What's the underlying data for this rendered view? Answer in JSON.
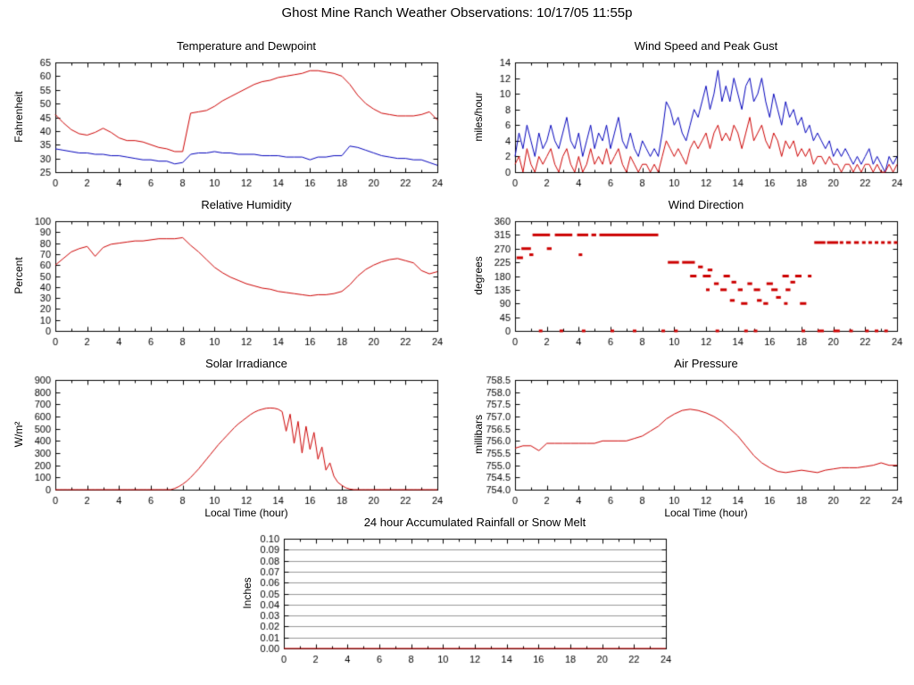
{
  "page_title": "Ghost Mine Ranch Weather Observations: 10/17/05 11:55p",
  "chart_data": [
    {
      "type": "line",
      "title": "Temperature and Dewpoint",
      "ylabel": "Fahrenheit",
      "xlabel": "",
      "xlim": [
        0,
        24
      ],
      "xtick": 2,
      "xminor": 1,
      "ylim": [
        25,
        65
      ],
      "ytick": 5,
      "ydec": 0,
      "series": [
        {
          "name": "dewpoint",
          "color": "#0000bb",
          "x0": 0,
          "dx": 0.5,
          "values": [
            33.5,
            33,
            32.5,
            32,
            32,
            31.5,
            31.5,
            31,
            31,
            30.5,
            30,
            29.5,
            29.5,
            29,
            29,
            28,
            28.5,
            31.5,
            32,
            32,
            32.5,
            32,
            32,
            31.5,
            31.5,
            31.5,
            31,
            31,
            31,
            30.5,
            30.5,
            30.5,
            29.5,
            30.5,
            30.5,
            31,
            31,
            34.5,
            34,
            33,
            32,
            31,
            30.5,
            30,
            30,
            29.5,
            29.5,
            28.5,
            27.5
          ]
        },
        {
          "name": "temperature",
          "color": "#cc0000",
          "x0": 0,
          "dx": 0.5,
          "values": [
            46,
            43,
            40.5,
            39,
            38.5,
            39.5,
            41,
            39.5,
            37.5,
            36.5,
            36.5,
            36,
            35,
            34,
            33.5,
            32.5,
            32.5,
            46.5,
            47,
            47.5,
            49,
            51,
            52.5,
            54,
            55.5,
            57,
            58,
            58.5,
            59.5,
            60,
            60.5,
            61,
            62,
            62,
            61.5,
            61,
            60,
            57,
            53,
            50,
            48,
            46.5,
            46,
            45.5,
            45.5,
            45.5,
            46,
            47,
            44
          ]
        }
      ]
    },
    {
      "type": "line",
      "title": "Wind Speed and Peak Gust",
      "ylabel": "miles/hour",
      "xlabel": "",
      "xlim": [
        0,
        24
      ],
      "xtick": 2,
      "xminor": 1,
      "ylim": [
        0,
        14
      ],
      "ytick": 2,
      "ydec": 0,
      "series": [
        {
          "name": "peak-gust",
          "color": "#0000bb",
          "x0": 0,
          "dx": 0.25,
          "values": [
            2,
            5,
            3,
            6,
            4,
            2,
            5,
            3,
            4,
            6,
            4,
            3,
            5,
            7,
            4,
            3,
            5,
            2,
            4,
            6,
            3,
            5,
            4,
            6,
            3,
            5,
            7,
            4,
            3,
            5,
            3,
            2,
            4,
            3,
            2,
            3,
            2,
            5,
            9,
            8,
            6,
            7,
            5,
            4,
            6,
            8,
            7,
            9,
            11,
            8,
            10,
            13,
            9,
            11,
            9,
            12,
            10,
            8,
            11,
            12,
            9,
            10,
            12,
            9,
            7,
            10,
            8,
            6,
            9,
            7,
            8,
            6,
            7,
            5,
            6,
            4,
            5,
            4,
            3,
            4,
            2,
            3,
            2,
            3,
            2,
            1,
            2,
            1,
            2,
            3,
            1,
            2,
            1,
            0,
            2,
            1,
            2
          ]
        },
        {
          "name": "wind-speed",
          "color": "#cc0000",
          "x0": 0,
          "dx": 0.25,
          "values": [
            1,
            2,
            0,
            3,
            1,
            0,
            2,
            1,
            2,
            3,
            1,
            0,
            2,
            3,
            1,
            0,
            2,
            0,
            1,
            3,
            1,
            2,
            1,
            3,
            1,
            2,
            3,
            1,
            0,
            2,
            1,
            0,
            1,
            1,
            0,
            1,
            0,
            2,
            4,
            3,
            2,
            3,
            2,
            1,
            3,
            4,
            3,
            4,
            5,
            3,
            5,
            6,
            4,
            5,
            4,
            6,
            5,
            3,
            5,
            7,
            4,
            5,
            6,
            4,
            3,
            5,
            4,
            2,
            4,
            3,
            4,
            2,
            3,
            2,
            3,
            1,
            2,
            2,
            1,
            2,
            1,
            1,
            0,
            1,
            1,
            0,
            1,
            0,
            1,
            1,
            0,
            1,
            0,
            0,
            1,
            0,
            1
          ]
        }
      ]
    },
    {
      "type": "line",
      "title": "Relative Humidity",
      "ylabel": "Percent",
      "xlabel": "",
      "xlim": [
        0,
        24
      ],
      "xtick": 2,
      "xminor": 1,
      "ylim": [
        0,
        100
      ],
      "ytick": 10,
      "ydec": 0,
      "series": [
        {
          "name": "relative-humidity",
          "color": "#cc0000",
          "x0": 0,
          "dx": 0.5,
          "values": [
            60,
            66,
            72,
            75,
            77,
            68,
            76,
            79,
            80,
            81,
            82,
            82,
            83,
            84,
            84,
            84,
            85,
            78,
            72,
            65,
            58,
            53,
            49,
            46,
            43,
            41,
            39,
            38,
            36,
            35,
            34,
            33,
            32,
            33,
            33,
            34,
            36,
            42,
            50,
            56,
            60,
            63,
            65,
            66,
            64,
            62,
            55,
            52,
            54
          ]
        }
      ]
    },
    {
      "type": "scatter",
      "title": "Wind Direction",
      "ylabel": "degrees",
      "xlabel": "",
      "xlim": [
        0,
        24
      ],
      "xtick": 2,
      "xminor": 1,
      "ylim": [
        0,
        360
      ],
      "ytick": 45,
      "ydec": 0,
      "segment_color": "#cc0000",
      "segments": [
        [
          0.1,
          0.5,
          240
        ],
        [
          0.4,
          1.0,
          270
        ],
        [
          0.9,
          1.15,
          250
        ],
        [
          1.1,
          2.2,
          315
        ],
        [
          2.0,
          2.3,
          270
        ],
        [
          2.5,
          3.6,
          315
        ],
        [
          3.9,
          4.6,
          315
        ],
        [
          4.0,
          4.2,
          250
        ],
        [
          4.8,
          5.1,
          315
        ],
        [
          5.3,
          9.0,
          315
        ],
        [
          9.6,
          10.3,
          225
        ],
        [
          10.5,
          11.3,
          225
        ],
        [
          11.0,
          11.4,
          180
        ],
        [
          11.5,
          11.8,
          210
        ],
        [
          11.8,
          12.3,
          180
        ],
        [
          12.1,
          12.4,
          200
        ],
        [
          12.0,
          12.2,
          135
        ],
        [
          12.5,
          12.8,
          155
        ],
        [
          12.9,
          13.3,
          135
        ],
        [
          13.1,
          13.5,
          180
        ],
        [
          13.5,
          13.8,
          100
        ],
        [
          13.6,
          13.9,
          160
        ],
        [
          14.0,
          14.3,
          135
        ],
        [
          14.2,
          14.6,
          90
        ],
        [
          14.6,
          14.9,
          155
        ],
        [
          15.0,
          15.4,
          135
        ],
        [
          15.2,
          15.5,
          100
        ],
        [
          15.6,
          15.9,
          90
        ],
        [
          15.8,
          16.2,
          155
        ],
        [
          16.1,
          16.5,
          135
        ],
        [
          16.4,
          16.7,
          110
        ],
        [
          16.8,
          17.2,
          180
        ],
        [
          16.9,
          17.1,
          90
        ],
        [
          17.0,
          17.3,
          135
        ],
        [
          17.3,
          17.6,
          160
        ],
        [
          17.6,
          18.0,
          180
        ],
        [
          17.9,
          18.3,
          90
        ],
        [
          18.4,
          18.6,
          180
        ],
        [
          18.8,
          19.5,
          290
        ],
        [
          19.6,
          20.3,
          290
        ],
        [
          20.4,
          20.6,
          290
        ],
        [
          20.8,
          21.1,
          290
        ],
        [
          21.3,
          21.6,
          290
        ],
        [
          21.8,
          22.0,
          290
        ],
        [
          22.2,
          22.4,
          290
        ],
        [
          22.6,
          22.8,
          290
        ],
        [
          23.0,
          23.2,
          290
        ],
        [
          23.4,
          23.6,
          290
        ],
        [
          23.8,
          24.0,
          290
        ],
        [
          1.5,
          1.7,
          0
        ],
        [
          2.8,
          3.0,
          0
        ],
        [
          4.2,
          4.4,
          0
        ],
        [
          6.0,
          6.2,
          0
        ],
        [
          7.4,
          7.6,
          0
        ],
        [
          9.2,
          9.4,
          0
        ],
        [
          10.0,
          10.2,
          0
        ],
        [
          12.6,
          12.8,
          0
        ],
        [
          14.4,
          14.6,
          0
        ],
        [
          15.0,
          15.2,
          0
        ],
        [
          18.0,
          18.2,
          0
        ],
        [
          19.0,
          19.4,
          0
        ],
        [
          20.0,
          20.4,
          0
        ],
        [
          21.0,
          21.2,
          0
        ],
        [
          22.0,
          22.2,
          0
        ],
        [
          22.6,
          22.8,
          0
        ],
        [
          23.2,
          23.4,
          0
        ]
      ]
    },
    {
      "type": "line",
      "title": "Solar Irradiance",
      "ylabel": "W/m²",
      "xlabel": "Local Time (hour)",
      "xlim": [
        0,
        24
      ],
      "xtick": 2,
      "xminor": 1,
      "ylim": [
        0,
        900
      ],
      "ytick": 100,
      "ydec": 0,
      "series": [
        {
          "name": "solar-irradiance",
          "color": "#cc0000",
          "x0": 0,
          "dx": 0.25,
          "values": [
            0,
            0,
            0,
            0,
            0,
            0,
            0,
            0,
            0,
            0,
            0,
            0,
            0,
            0,
            0,
            0,
            0,
            0,
            0,
            0,
            0,
            0,
            0,
            0,
            0,
            0,
            0,
            0,
            0,
            0,
            10,
            25,
            45,
            70,
            100,
            135,
            170,
            210,
            250,
            290,
            330,
            370,
            405,
            440,
            475,
            510,
            540,
            565,
            590,
            615,
            635,
            650,
            660,
            668,
            670,
            668,
            660,
            640,
            480,
            620,
            380,
            560,
            300,
            520,
            330,
            470,
            250,
            350,
            160,
            220,
            110,
            60,
            35,
            15,
            5,
            0,
            0,
            0,
            0,
            0,
            0,
            0,
            0,
            0,
            0,
            0,
            0,
            0,
            0,
            0,
            0,
            0,
            0,
            0,
            0,
            0,
            0
          ]
        }
      ]
    },
    {
      "type": "line",
      "title": "Air Pressure",
      "ylabel": "millibars",
      "xlabel": "Local Time (hour)",
      "xlim": [
        0,
        24
      ],
      "xtick": 2,
      "xminor": 1,
      "ylim": [
        754,
        758.5
      ],
      "ytick": 0.5,
      "ydec": 1,
      "series": [
        {
          "name": "air-pressure",
          "color": "#cc0000",
          "x0": 0,
          "dx": 0.5,
          "values": [
            755.7,
            755.8,
            755.8,
            755.6,
            755.9,
            755.9,
            755.9,
            755.9,
            755.9,
            755.9,
            755.9,
            756.0,
            756.0,
            756.0,
            756.0,
            756.1,
            756.2,
            756.4,
            756.6,
            756.9,
            757.1,
            757.25,
            757.3,
            757.25,
            757.15,
            757.0,
            756.8,
            756.5,
            756.2,
            755.8,
            755.4,
            755.1,
            754.9,
            754.75,
            754.7,
            754.75,
            754.8,
            754.75,
            754.7,
            754.8,
            754.85,
            754.9,
            754.9,
            754.9,
            754.95,
            755.0,
            755.1,
            755.0,
            755.0
          ]
        }
      ]
    },
    {
      "type": "line",
      "title": "24 hour Accumulated Rainfall or Snow Melt",
      "ylabel": "Inches",
      "xlabel": "",
      "xlim": [
        0,
        24
      ],
      "xtick": 2,
      "xminor": 1,
      "ylim": [
        0,
        0.1
      ],
      "ytick": 0.01,
      "ydec": 2,
      "hgrid": true,
      "series": [
        {
          "name": "accumulated-rainfall",
          "color": "#cc0000",
          "x0": 0,
          "dx": 24,
          "values": [
            0,
            0
          ]
        }
      ]
    }
  ]
}
